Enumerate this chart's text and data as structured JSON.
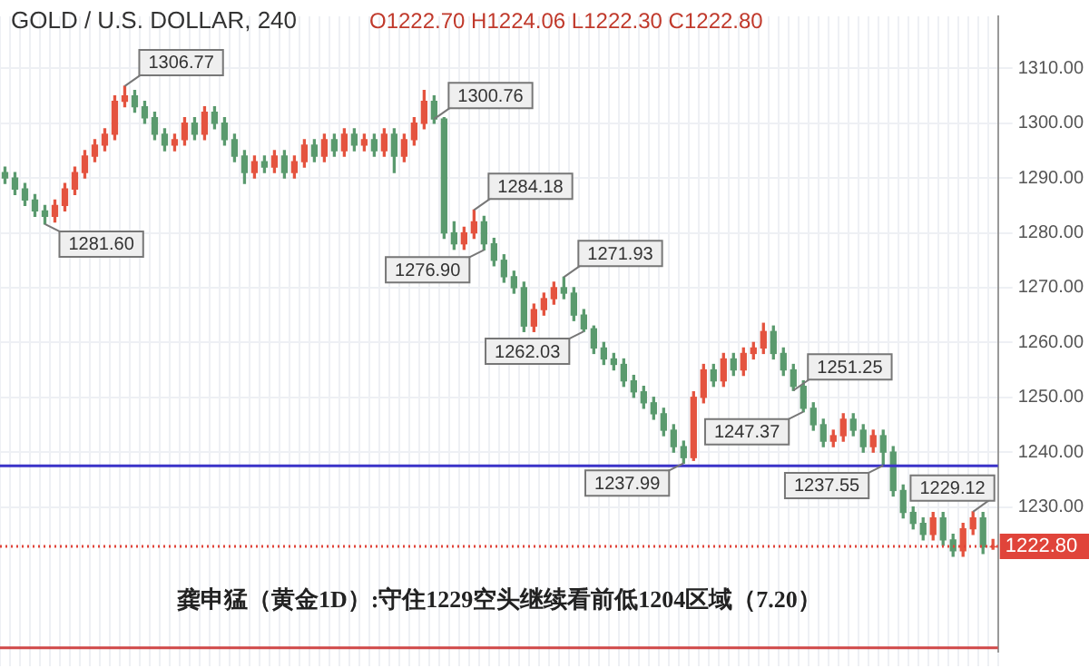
{
  "chart_data": {
    "type": "candlestick",
    "title": "GOLD / U.S. DOLLAR, 240",
    "subtitle": "O1222.70 H1224.06 L1222.30 C1222.80",
    "categories": [
      null,
      null,
      null,
      null,
      null,
      null,
      null,
      null,
      null,
      null,
      null,
      null,
      null,
      null,
      null,
      null,
      null,
      null,
      null,
      null,
      null,
      null,
      null,
      null,
      null,
      null,
      null,
      null,
      null,
      null,
      null,
      null,
      null,
      null,
      null,
      null,
      null,
      null,
      null,
      null,
      null,
      null,
      null,
      null,
      null,
      null,
      null,
      null,
      null,
      null,
      null,
      null,
      null,
      null,
      null,
      null,
      null,
      null,
      null,
      null,
      null,
      null,
      null,
      null,
      null,
      null,
      null,
      null,
      null,
      null,
      null,
      null,
      null,
      null,
      null,
      null,
      null,
      null,
      null,
      null,
      null,
      null,
      null,
      null,
      null,
      null,
      null,
      null,
      null,
      null,
      null,
      null,
      null,
      null,
      null,
      null,
      null,
      null,
      null,
      null
    ],
    "ohlc": [
      [
        1291,
        1292,
        1289,
        1290
      ],
      [
        1290,
        1291,
        1287,
        1288
      ],
      [
        1288,
        1289,
        1285,
        1286
      ],
      [
        1286,
        1287,
        1283,
        1284
      ],
      [
        1284,
        1285,
        1281.6,
        1283
      ],
      [
        1283,
        1286,
        1282,
        1285
      ],
      [
        1285,
        1289,
        1284,
        1288
      ],
      [
        1288,
        1292,
        1287,
        1291
      ],
      [
        1291,
        1295,
        1290,
        1294
      ],
      [
        1294,
        1297,
        1293,
        1296
      ],
      [
        1296,
        1299,
        1295,
        1298
      ],
      [
        1298,
        1305,
        1297,
        1304
      ],
      [
        1304,
        1306.77,
        1303,
        1305
      ],
      [
        1305,
        1306,
        1302,
        1303
      ],
      [
        1303,
        1304,
        1300,
        1301
      ],
      [
        1301,
        1302,
        1297,
        1298
      ],
      [
        1298,
        1299,
        1295,
        1296
      ],
      [
        1296,
        1298,
        1295,
        1297
      ],
      [
        1297,
        1301,
        1296,
        1300
      ],
      [
        1300,
        1301,
        1297,
        1298
      ],
      [
        1298,
        1303,
        1297,
        1302
      ],
      [
        1302,
        1303,
        1299,
        1300
      ],
      [
        1300,
        1301,
        1296,
        1297
      ],
      [
        1297,
        1298,
        1293,
        1294
      ],
      [
        1294,
        1295,
        1289,
        1291
      ],
      [
        1291,
        1294,
        1290,
        1293
      ],
      [
        1293,
        1294,
        1291,
        1292
      ],
      [
        1292,
        1295,
        1291,
        1294
      ],
      [
        1294,
        1295,
        1290,
        1291
      ],
      [
        1291,
        1294,
        1290,
        1293
      ],
      [
        1293,
        1297,
        1292,
        1296
      ],
      [
        1296,
        1297,
        1293,
        1294
      ],
      [
        1294,
        1298,
        1293,
        1297
      ],
      [
        1297,
        1298,
        1294,
        1295
      ],
      [
        1295,
        1299,
        1294,
        1298
      ],
      [
        1298,
        1299,
        1295,
        1296
      ],
      [
        1296,
        1298,
        1295,
        1297
      ],
      [
        1297,
        1298,
        1294,
        1295
      ],
      [
        1295,
        1299,
        1294,
        1298
      ],
      [
        1298,
        1299,
        1291,
        1294
      ],
      [
        1294,
        1298,
        1293,
        1297
      ],
      [
        1297,
        1301,
        1296,
        1300
      ],
      [
        1300,
        1306,
        1299,
        1304
      ],
      [
        1304,
        1305,
        1300,
        1300.76
      ],
      [
        1300.76,
        1301,
        1279,
        1280
      ],
      [
        1280,
        1282,
        1277,
        1278
      ],
      [
        1278,
        1281,
        1277,
        1280
      ],
      [
        1280,
        1284.18,
        1279,
        1282
      ],
      [
        1282,
        1283,
        1276.9,
        1278
      ],
      [
        1278,
        1279,
        1274,
        1275
      ],
      [
        1275,
        1276,
        1271,
        1272
      ],
      [
        1272,
        1273,
        1269,
        1270
      ],
      [
        1270,
        1271,
        1262,
        1263
      ],
      [
        1263,
        1267,
        1262,
        1266
      ],
      [
        1266,
        1269,
        1265,
        1268
      ],
      [
        1268,
        1271,
        1267,
        1270
      ],
      [
        1270,
        1271.93,
        1268,
        1269
      ],
      [
        1269,
        1270,
        1264,
        1265
      ],
      [
        1265,
        1266,
        1262.03,
        1262.5
      ],
      [
        1262.5,
        1263,
        1258,
        1259
      ],
      [
        1259,
        1260,
        1256,
        1257
      ],
      [
        1257,
        1258,
        1255,
        1256
      ],
      [
        1256,
        1257,
        1252,
        1253
      ],
      [
        1253,
        1254,
        1250,
        1251
      ],
      [
        1251,
        1252,
        1248,
        1249
      ],
      [
        1249,
        1250,
        1246,
        1247
      ],
      [
        1247,
        1248,
        1243,
        1244
      ],
      [
        1244,
        1245,
        1240,
        1241
      ],
      [
        1241,
        1242,
        1237.99,
        1239
      ],
      [
        1239,
        1251,
        1238.5,
        1250
      ],
      [
        1250,
        1256,
        1249,
        1255
      ],
      [
        1255,
        1256,
        1252,
        1253
      ],
      [
        1253,
        1258,
        1252,
        1257
      ],
      [
        1257,
        1258,
        1254,
        1255
      ],
      [
        1255,
        1259,
        1254,
        1258
      ],
      [
        1258,
        1260,
        1257,
        1259
      ],
      [
        1259,
        1263.5,
        1258,
        1262
      ],
      [
        1262,
        1263,
        1257,
        1258
      ],
      [
        1258,
        1259,
        1254,
        1255
      ],
      [
        1255,
        1256,
        1251.25,
        1252
      ],
      [
        1252,
        1253,
        1247.37,
        1248
      ],
      [
        1248,
        1249,
        1244,
        1245
      ],
      [
        1245,
        1246,
        1241,
        1242
      ],
      [
        1242,
        1244,
        1241,
        1243
      ],
      [
        1243,
        1247,
        1242,
        1246
      ],
      [
        1246,
        1247,
        1243,
        1244
      ],
      [
        1244,
        1245,
        1240,
        1241
      ],
      [
        1241,
        1244,
        1240,
        1243
      ],
      [
        1243,
        1244,
        1237.55,
        1240
      ],
      [
        1240,
        1241,
        1232,
        1233
      ],
      [
        1233,
        1234,
        1228,
        1229
      ],
      [
        1229,
        1230,
        1226,
        1227
      ],
      [
        1227,
        1228,
        1224,
        1225
      ],
      [
        1225,
        1229,
        1224,
        1228
      ],
      [
        1228,
        1229,
        1223,
        1224
      ],
      [
        1224,
        1225,
        1221,
        1222
      ],
      [
        1222,
        1227,
        1221,
        1226
      ],
      [
        1226,
        1229.12,
        1225,
        1228
      ],
      [
        1228,
        1229,
        1221.5,
        1222.7
      ],
      [
        1222.7,
        1224.06,
        1222.3,
        1222.8
      ]
    ],
    "colors": [
      "#5a9a6e",
      "#5a9a6e",
      "#5a9a6e",
      "#5a9a6e",
      "#5a9a6e",
      "#e4533f",
      "#e4533f",
      "#e4533f",
      "#e4533f",
      "#e4533f",
      "#e4533f",
      "#e4533f",
      "#e4533f",
      "#5a9a6e",
      "#5a9a6e",
      "#5a9a6e",
      "#5a9a6e",
      "#e4533f",
      "#e4533f",
      "#5a9a6e",
      "#e4533f",
      "#5a9a6e",
      "#5a9a6e",
      "#5a9a6e",
      "#5a9a6e",
      "#e4533f",
      "#5a9a6e",
      "#e4533f",
      "#5a9a6e",
      "#e4533f",
      "#e4533f",
      "#5a9a6e",
      "#e4533f",
      "#5a9a6e",
      "#e4533f",
      "#5a9a6e",
      "#e4533f",
      "#5a9a6e",
      "#e4533f",
      "#5a9a6e",
      "#e4533f",
      "#e4533f",
      "#e4533f",
      "#5a9a6e",
      "#5a9a6e",
      "#5a9a6e",
      "#e4533f",
      "#e4533f",
      "#5a9a6e",
      "#5a9a6e",
      "#5a9a6e",
      "#5a9a6e",
      "#5a9a6e",
      "#e4533f",
      "#e4533f",
      "#e4533f",
      "#5a9a6e",
      "#5a9a6e",
      "#5a9a6e",
      "#5a9a6e",
      "#5a9a6e",
      "#5a9a6e",
      "#5a9a6e",
      "#5a9a6e",
      "#5a9a6e",
      "#5a9a6e",
      "#5a9a6e",
      "#5a9a6e",
      "#5a9a6e",
      "#e4533f",
      "#e4533f",
      "#5a9a6e",
      "#e4533f",
      "#5a9a6e",
      "#e4533f",
      "#e4533f",
      "#e4533f",
      "#5a9a6e",
      "#5a9a6e",
      "#5a9a6e",
      "#5a9a6e",
      "#5a9a6e",
      "#5a9a6e",
      "#e4533f",
      "#e4533f",
      "#5a9a6e",
      "#5a9a6e",
      "#e4533f",
      "#5a9a6e",
      "#5a9a6e",
      "#5a9a6e",
      "#5a9a6e",
      "#5a9a6e",
      "#e4533f",
      "#5a9a6e",
      "#5a9a6e",
      "#e4533f",
      "#e4533f",
      "#5a9a6e",
      "#e4533f"
    ],
    "ylim": [
      1203.6,
      1319.5
    ],
    "yticks": [
      {
        "value": 1230,
        "label": "1230.00"
      },
      {
        "value": 1240,
        "label": "1240.00"
      },
      {
        "value": 1250,
        "label": "1250.00"
      },
      {
        "value": 1260,
        "label": "1260.00"
      },
      {
        "value": 1270,
        "label": "1270.00"
      },
      {
        "value": 1280,
        "label": "1280.00"
      },
      {
        "value": 1290,
        "label": "1290.00"
      },
      {
        "value": 1300,
        "label": "1300.00"
      },
      {
        "value": 1310,
        "label": "1310.00"
      }
    ],
    "grid": true,
    "ref_lines": [
      {
        "axis": "y",
        "value": 1237.5,
        "color": "#3b33c8",
        "line_style": "solid"
      },
      {
        "axis": "y",
        "value": 1222.8,
        "label": "1222.80",
        "color": "#e0443a",
        "line_style": "dotted"
      },
      {
        "axis": "y",
        "value": 1204.3,
        "color": "#d04848",
        "line_style": "solid"
      }
    ],
    "annotations": [
      "1306.77",
      "1300.76",
      "1281.60",
      "1284.18",
      "1276.90",
      "1271.93",
      "1262.03",
      "1251.25",
      "1247.37",
      "1237.99",
      "1237.55",
      "1229.12",
      "龚申猛（黄金1D）:守住1229空头继续看前低1204区域（7.20）"
    ]
  }
}
